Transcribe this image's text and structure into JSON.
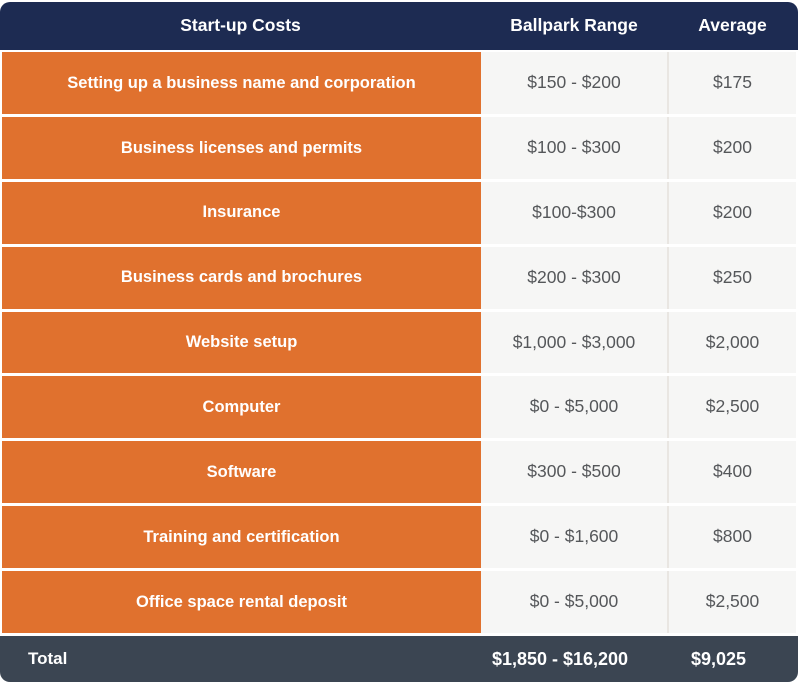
{
  "chart_data": {
    "type": "table",
    "columns": [
      "Start-up Costs",
      "Ballpark Range",
      "Average"
    ],
    "rows": [
      {
        "label": "Setting up a business name and corporation",
        "range": "$150 - $200",
        "average": "$175"
      },
      {
        "label": "Business licenses and permits",
        "range": "$100 - $300",
        "average": "$200"
      },
      {
        "label": "Insurance",
        "range": "$100-$300",
        "average": "$200"
      },
      {
        "label": "Business cards and brochures",
        "range": "$200 - $300",
        "average": "$250"
      },
      {
        "label": "Website setup",
        "range": "$1,000 - $3,000",
        "average": "$2,000"
      },
      {
        "label": "Computer",
        "range": "$0 - $5,000",
        "average": "$2,500"
      },
      {
        "label": "Software",
        "range": "$300 - $500",
        "average": "$400"
      },
      {
        "label": "Training and certification",
        "range": "$0 - $1,600",
        "average": "$800"
      },
      {
        "label": "Office space rental deposit",
        "range": "$0 - $5,000",
        "average": "$2,500"
      }
    ],
    "footer": {
      "label": "Total",
      "range": "$1,850 - $16,200",
      "average": "$9,025"
    },
    "title": "Start-up Costs",
    "layout": {
      "grid": false,
      "legend": "none"
    }
  },
  "colors": {
    "page_bg": "#ffffff",
    "header_bg": "#1d2b52",
    "header_text": "#ffffff",
    "row_label_bg": "#e0712e",
    "row_label_text": "#ffffff",
    "value_bg": "#f6f6f5",
    "value_text": "#55575a",
    "divider": "#e9e6e2",
    "footer_bg": "#3b4552",
    "footer_text": "#ffffff"
  }
}
